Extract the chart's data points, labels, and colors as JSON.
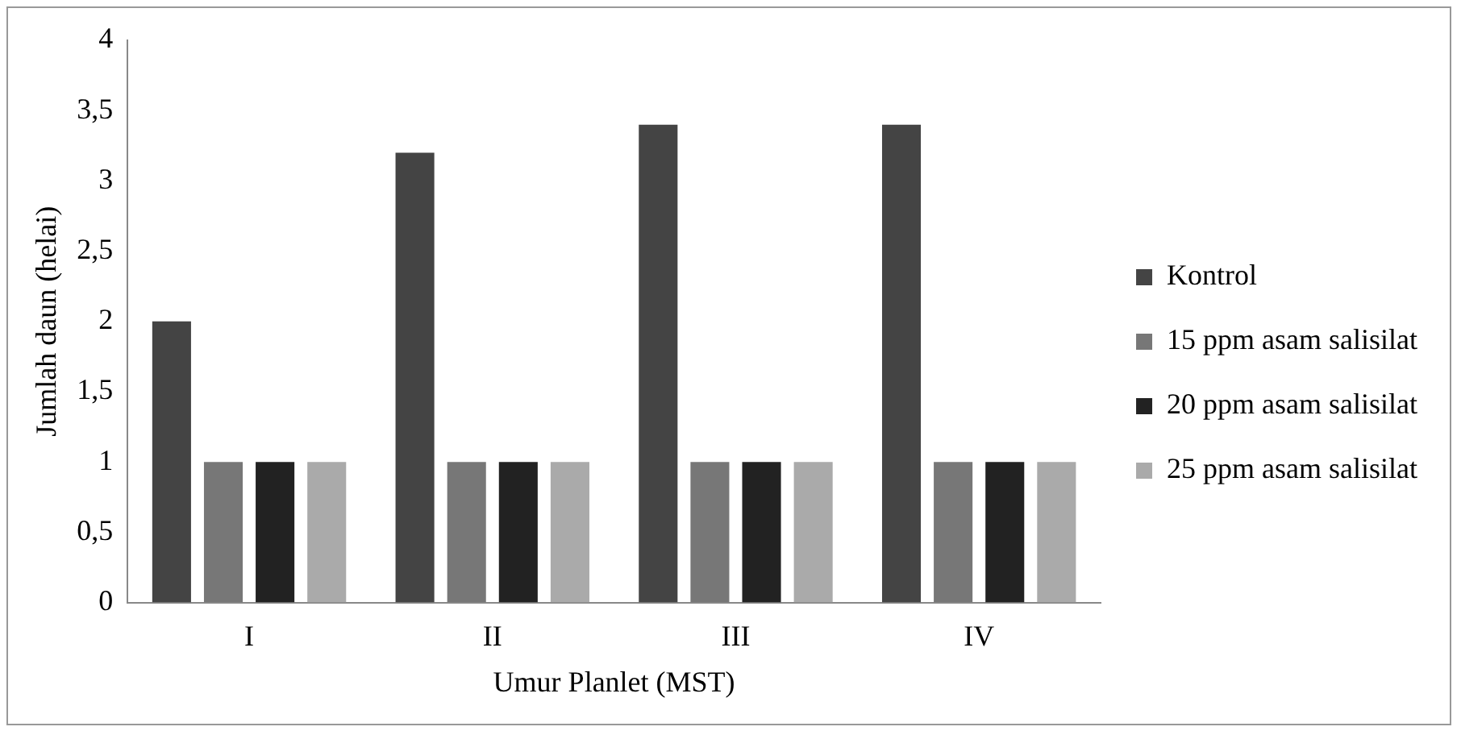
{
  "chart_data": {
    "type": "bar",
    "xlabel": "Umur Planlet (MST)",
    "ylabel": "Jumlah daun (helai)",
    "categories": [
      "I",
      "II",
      "III",
      "IV"
    ],
    "series": [
      {
        "name": "Kontrol",
        "color": "#444444",
        "values": [
          2,
          3.2,
          3.4,
          3.4
        ]
      },
      {
        "name": "15 ppm asam salisilat",
        "color": "#777777",
        "values": [
          1,
          1,
          1,
          1
        ]
      },
      {
        "name": "20 ppm asam salisilat",
        "color": "#222222",
        "values": [
          1,
          1,
          1,
          1
        ]
      },
      {
        "name": "25 ppm asam salisilat",
        "color": "#aaaaaa",
        "values": [
          1,
          1,
          1,
          1
        ]
      }
    ],
    "ylim": [
      0,
      4
    ],
    "yticks": [
      0,
      {
        "value": 0.5,
        "label": "0,5"
      },
      1,
      {
        "value": 1.5,
        "label": "1,5"
      },
      2,
      {
        "value": 2.5,
        "label": "2,5"
      },
      3,
      {
        "value": 3.5,
        "label": "3,5"
      },
      4
    ],
    "grid": false,
    "legend": "right"
  }
}
